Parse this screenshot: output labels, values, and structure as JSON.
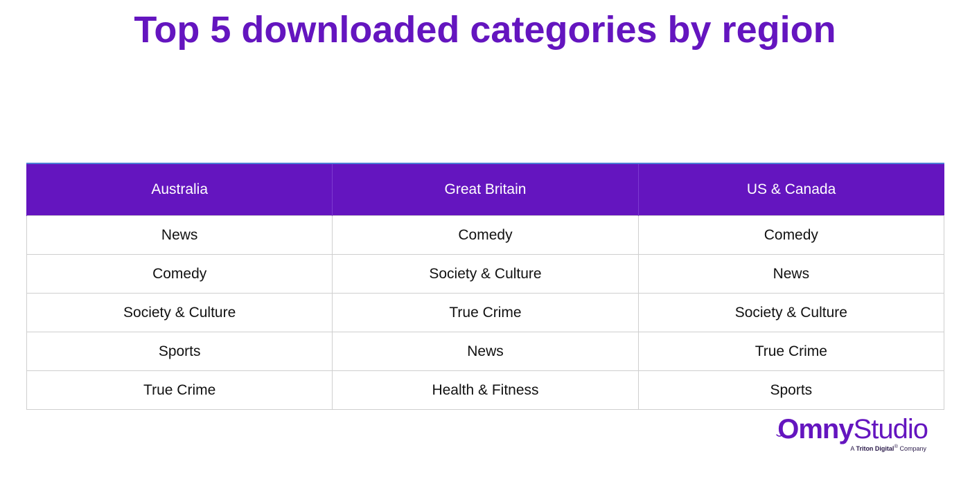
{
  "title": "Top 5 downloaded categories by region",
  "chart_data": {
    "type": "table",
    "columns": [
      "Australia",
      "Great Britain",
      "US & Canada"
    ],
    "rows": [
      [
        "News",
        "Comedy",
        "Comedy"
      ],
      [
        "Comedy",
        "Society & Culture",
        "News"
      ],
      [
        "Society & Culture",
        "True Crime",
        "Society & Culture"
      ],
      [
        "Sports",
        "News",
        "True Crime"
      ],
      [
        "True Crime",
        "Health & Fitness",
        "Sports"
      ]
    ]
  },
  "logo": {
    "brand_part1": "Omny",
    "brand_part2": "Studio",
    "tagline_prefix": "A ",
    "tagline_brand": "Triton Digital",
    "tagline_mark": "®",
    "tagline_suffix": " Company"
  },
  "colors": {
    "accent": "#6415bf",
    "header_text": "#ffffff",
    "cell_text": "#111111",
    "grid": "#cfcfcf"
  }
}
